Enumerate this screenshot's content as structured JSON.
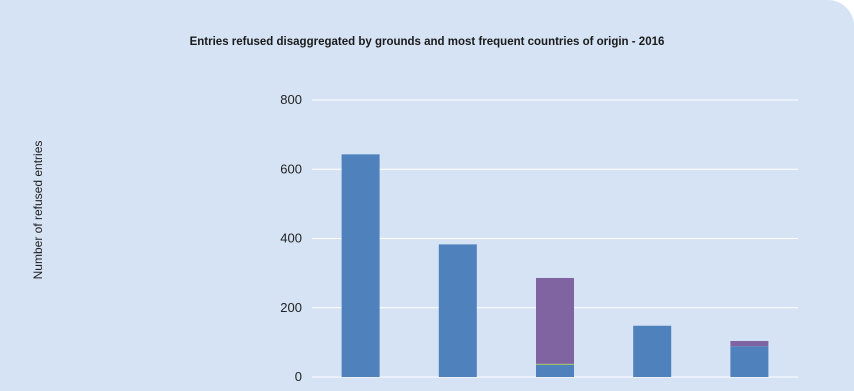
{
  "chart_data": {
    "type": "bar",
    "stacked": true,
    "title": "Entries refused disaggregated by grounds and most frequent countries of origin - 2016",
    "xlabel": "",
    "ylabel": "Number of refused entries",
    "ylim": [
      0,
      800
    ],
    "yticks": [
      0,
      200,
      400,
      600,
      800
    ],
    "grid": true,
    "categories": [
      "",
      "",
      "",
      "",
      ""
    ],
    "series": [
      {
        "color": "#4f81bd",
        "values": [
          643,
          383,
          35,
          148,
          89
        ]
      },
      {
        "color": "#9bbb59",
        "values": [
          0,
          0,
          3,
          0,
          0
        ]
      },
      {
        "color": "#8064a2",
        "values": [
          0,
          0,
          248,
          0,
          15
        ]
      }
    ]
  }
}
